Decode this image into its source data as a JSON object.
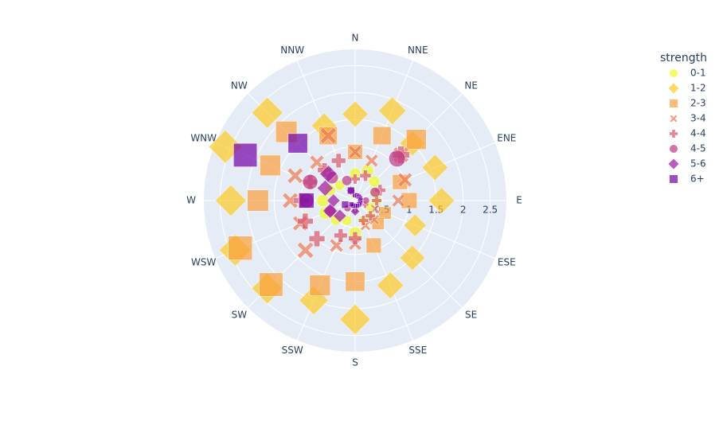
{
  "chart_data": {
    "type": "scatterpolar",
    "categories": [
      "N",
      "NNE",
      "NE",
      "ENE",
      "E",
      "ESE",
      "SE",
      "SSE",
      "S",
      "SSW",
      "SW",
      "WSW",
      "W",
      "WNW",
      "NW",
      "NNW"
    ],
    "legend_title": "strength",
    "rlim": [
      0,
      2.8
    ],
    "rticks": [
      0,
      0.5,
      1,
      1.5,
      2,
      2.5
    ],
    "grid": true,
    "series": [
      {
        "name": "0-1",
        "color": "#f0f921",
        "symbol": "circle",
        "values": [
          0.5,
          0.6,
          0.5,
          0.4,
          0.4,
          0.3,
          0.4,
          0.4,
          0.6,
          0.4,
          0.5,
          0.6,
          0.6,
          0.5,
          0.4,
          0.1
        ]
      },
      {
        "name": "1-2",
        "color": "#fdca26",
        "symbol": "diamond",
        "values": [
          1.6,
          1.8,
          1.5,
          1.6,
          1.6,
          1.2,
          1.5,
          1.7,
          2.2,
          2.0,
          2.3,
          2.4,
          2.3,
          2.6,
          2.3,
          1.5
        ]
      },
      {
        "name": "2-3",
        "color": "#fb9f3a",
        "symbol": "square",
        "values": [
          0.9,
          1.3,
          1.6,
          0.9,
          1.0,
          0.6,
          0.6,
          0.9,
          1.5,
          1.7,
          2.2,
          2.3,
          1.8,
          1.7,
          1.8,
          1.3
        ]
      },
      {
        "name": "3-4",
        "color": "#ed7953",
        "symbol": "x",
        "values": [
          0.9,
          0.8,
          1.2,
          1.0,
          0.8,
          0.4,
          0.5,
          0.5,
          0.8,
          0.9,
          1.3,
          1.1,
          1.2,
          1.2,
          1.0,
          1.3
        ]
      },
      {
        "name": "4-4",
        "color": "#d8576b",
        "symbol": "cross",
        "values": [
          0.4,
          0.5,
          1.2,
          0.5,
          0.4,
          0.2,
          0.4,
          0.4,
          0.7,
          0.7,
          1.0,
          1.0,
          1.0,
          0.9,
          0.8,
          0.8
        ]
      },
      {
        "name": "4-5",
        "color": "#bd3786",
        "symbol": "circle",
        "values": [
          0.1,
          0.1,
          1.1,
          0.4,
          0.2,
          0.1,
          0.1,
          0.1,
          0.1,
          0.1,
          0.2,
          0.5,
          0.9,
          0.9,
          0.6,
          0.4
        ]
      },
      {
        "name": "5-6",
        "color": "#9c179e",
        "symbol": "diamond",
        "values": [
          0.1,
          0.1,
          0.1,
          0.1,
          0.1,
          0.1,
          0.1,
          0.1,
          0.2,
          0.1,
          0.4,
          0.5,
          0.4,
          0.6,
          0.7,
          0.2
        ]
      },
      {
        "name": "6+",
        "color": "#7201a8",
        "symbol": "square",
        "values": [
          0.1,
          0.1,
          0.1,
          0.1,
          0.1,
          0.1,
          0.1,
          0.1,
          0.1,
          0.1,
          0.1,
          0.2,
          0.9,
          2.2,
          1.5,
          0.2
        ]
      }
    ]
  }
}
